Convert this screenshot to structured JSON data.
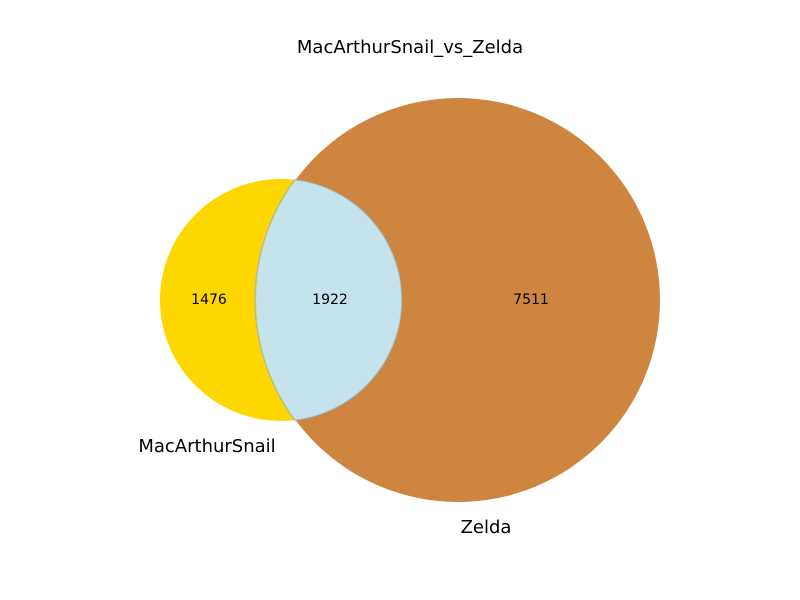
{
  "title": "MacArthurSnail_vs_Zelda",
  "sets": [
    {
      "name": "MacArthurSnail",
      "only_count": "1476",
      "color": "#ffd700"
    },
    {
      "name": "Zelda",
      "only_count": "7511",
      "color": "#cd853f"
    }
  ],
  "intersection": {
    "count": "1922",
    "color": "#c5e3ec"
  }
}
